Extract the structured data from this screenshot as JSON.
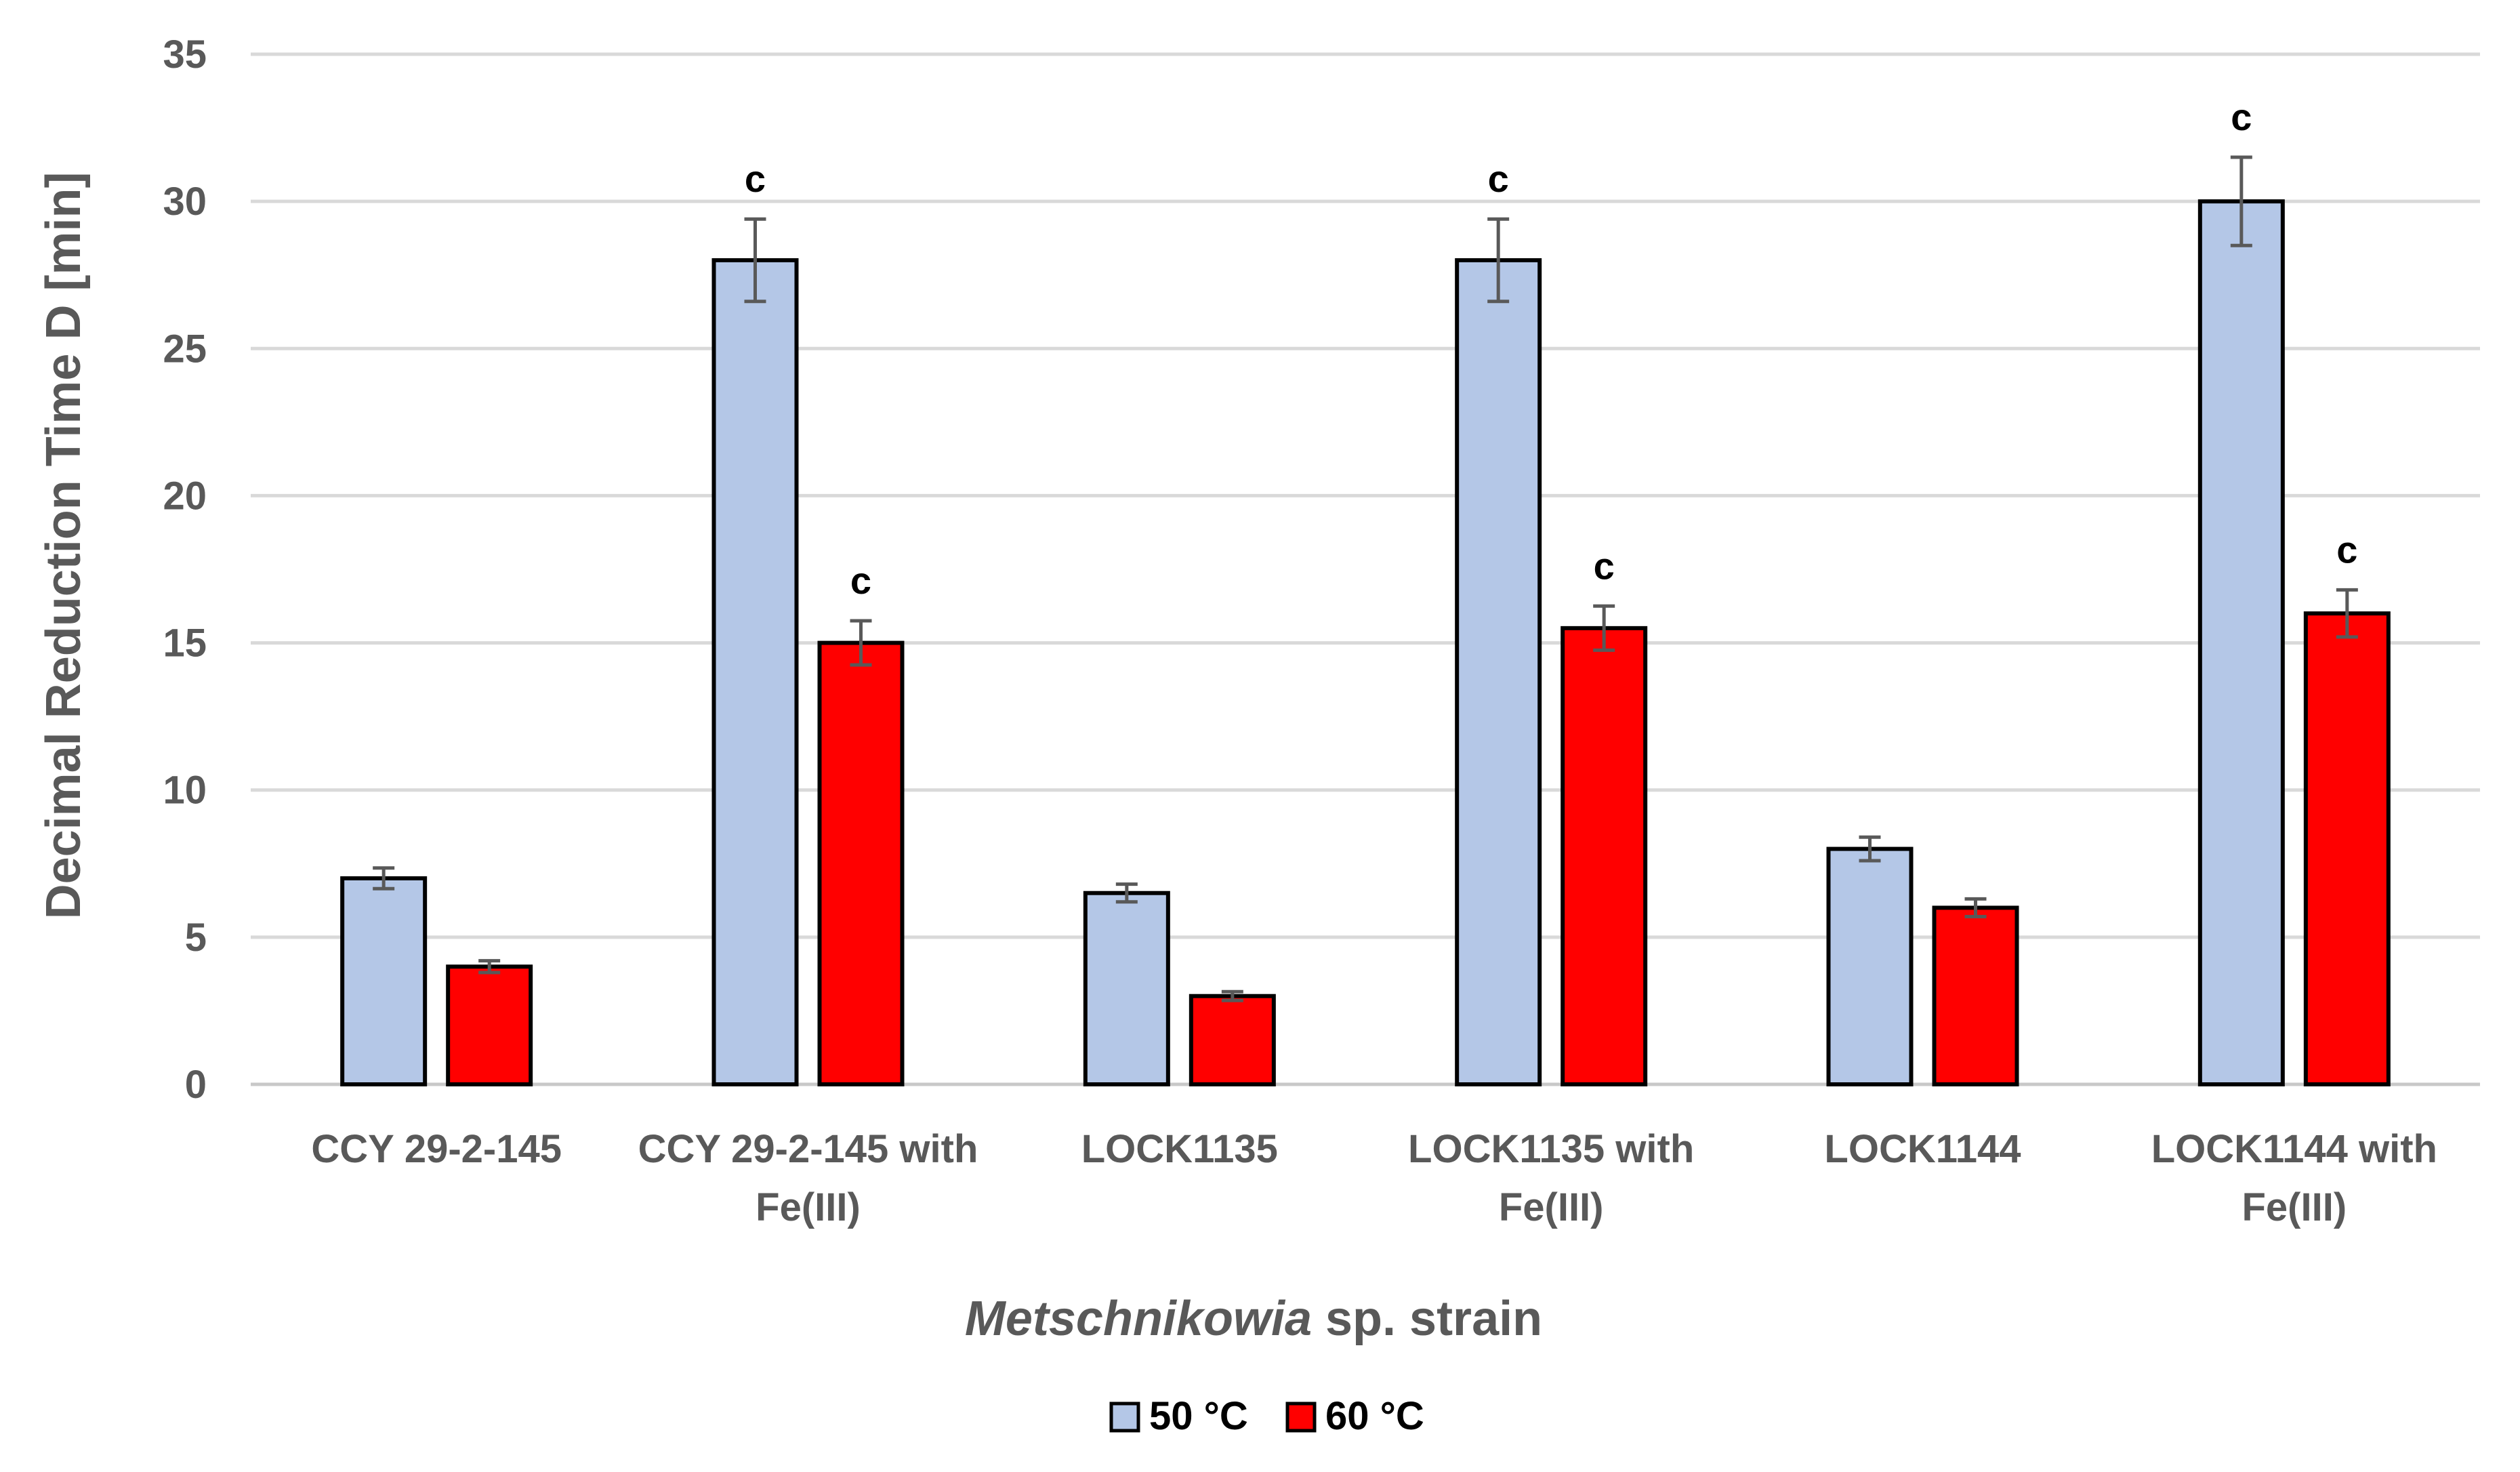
{
  "chart_data": {
    "type": "bar",
    "title": "",
    "xlabel_italic": "Metschnikowia",
    "xlabel_rest": " sp. strain",
    "ylabel": "Decimal Reduction Time D [min]",
    "ylim": [
      0,
      35
    ],
    "yticks": [
      0,
      5,
      10,
      15,
      20,
      25,
      30,
      35
    ],
    "grid": true,
    "legend_position": "bottom",
    "categories": [
      [
        "CCY 29-2-145"
      ],
      [
        "CCY 29-2-145 with",
        "Fe(III)"
      ],
      [
        "LOCK1135"
      ],
      [
        "LOCK1135 with",
        "Fe(III)"
      ],
      [
        "LOCK1144"
      ],
      [
        "LOCK1144 with",
        "Fe(III)"
      ]
    ],
    "series": [
      {
        "name": "50 °C",
        "color": "#b4c7e7",
        "values": [
          7.0,
          28.0,
          6.5,
          28.0,
          8.0,
          30.0
        ],
        "errors": [
          0.35,
          1.4,
          0.3,
          1.4,
          0.4,
          1.5
        ],
        "annotations": [
          "",
          "c",
          "",
          "c",
          "",
          "c"
        ]
      },
      {
        "name": "60 °C",
        "color": "#ff0000",
        "values": [
          4.0,
          15.0,
          3.0,
          15.5,
          6.0,
          16.0
        ],
        "errors": [
          0.2,
          0.75,
          0.15,
          0.75,
          0.3,
          0.8
        ],
        "annotations": [
          "",
          "c",
          "",
          "c",
          "",
          "c"
        ]
      }
    ]
  }
}
